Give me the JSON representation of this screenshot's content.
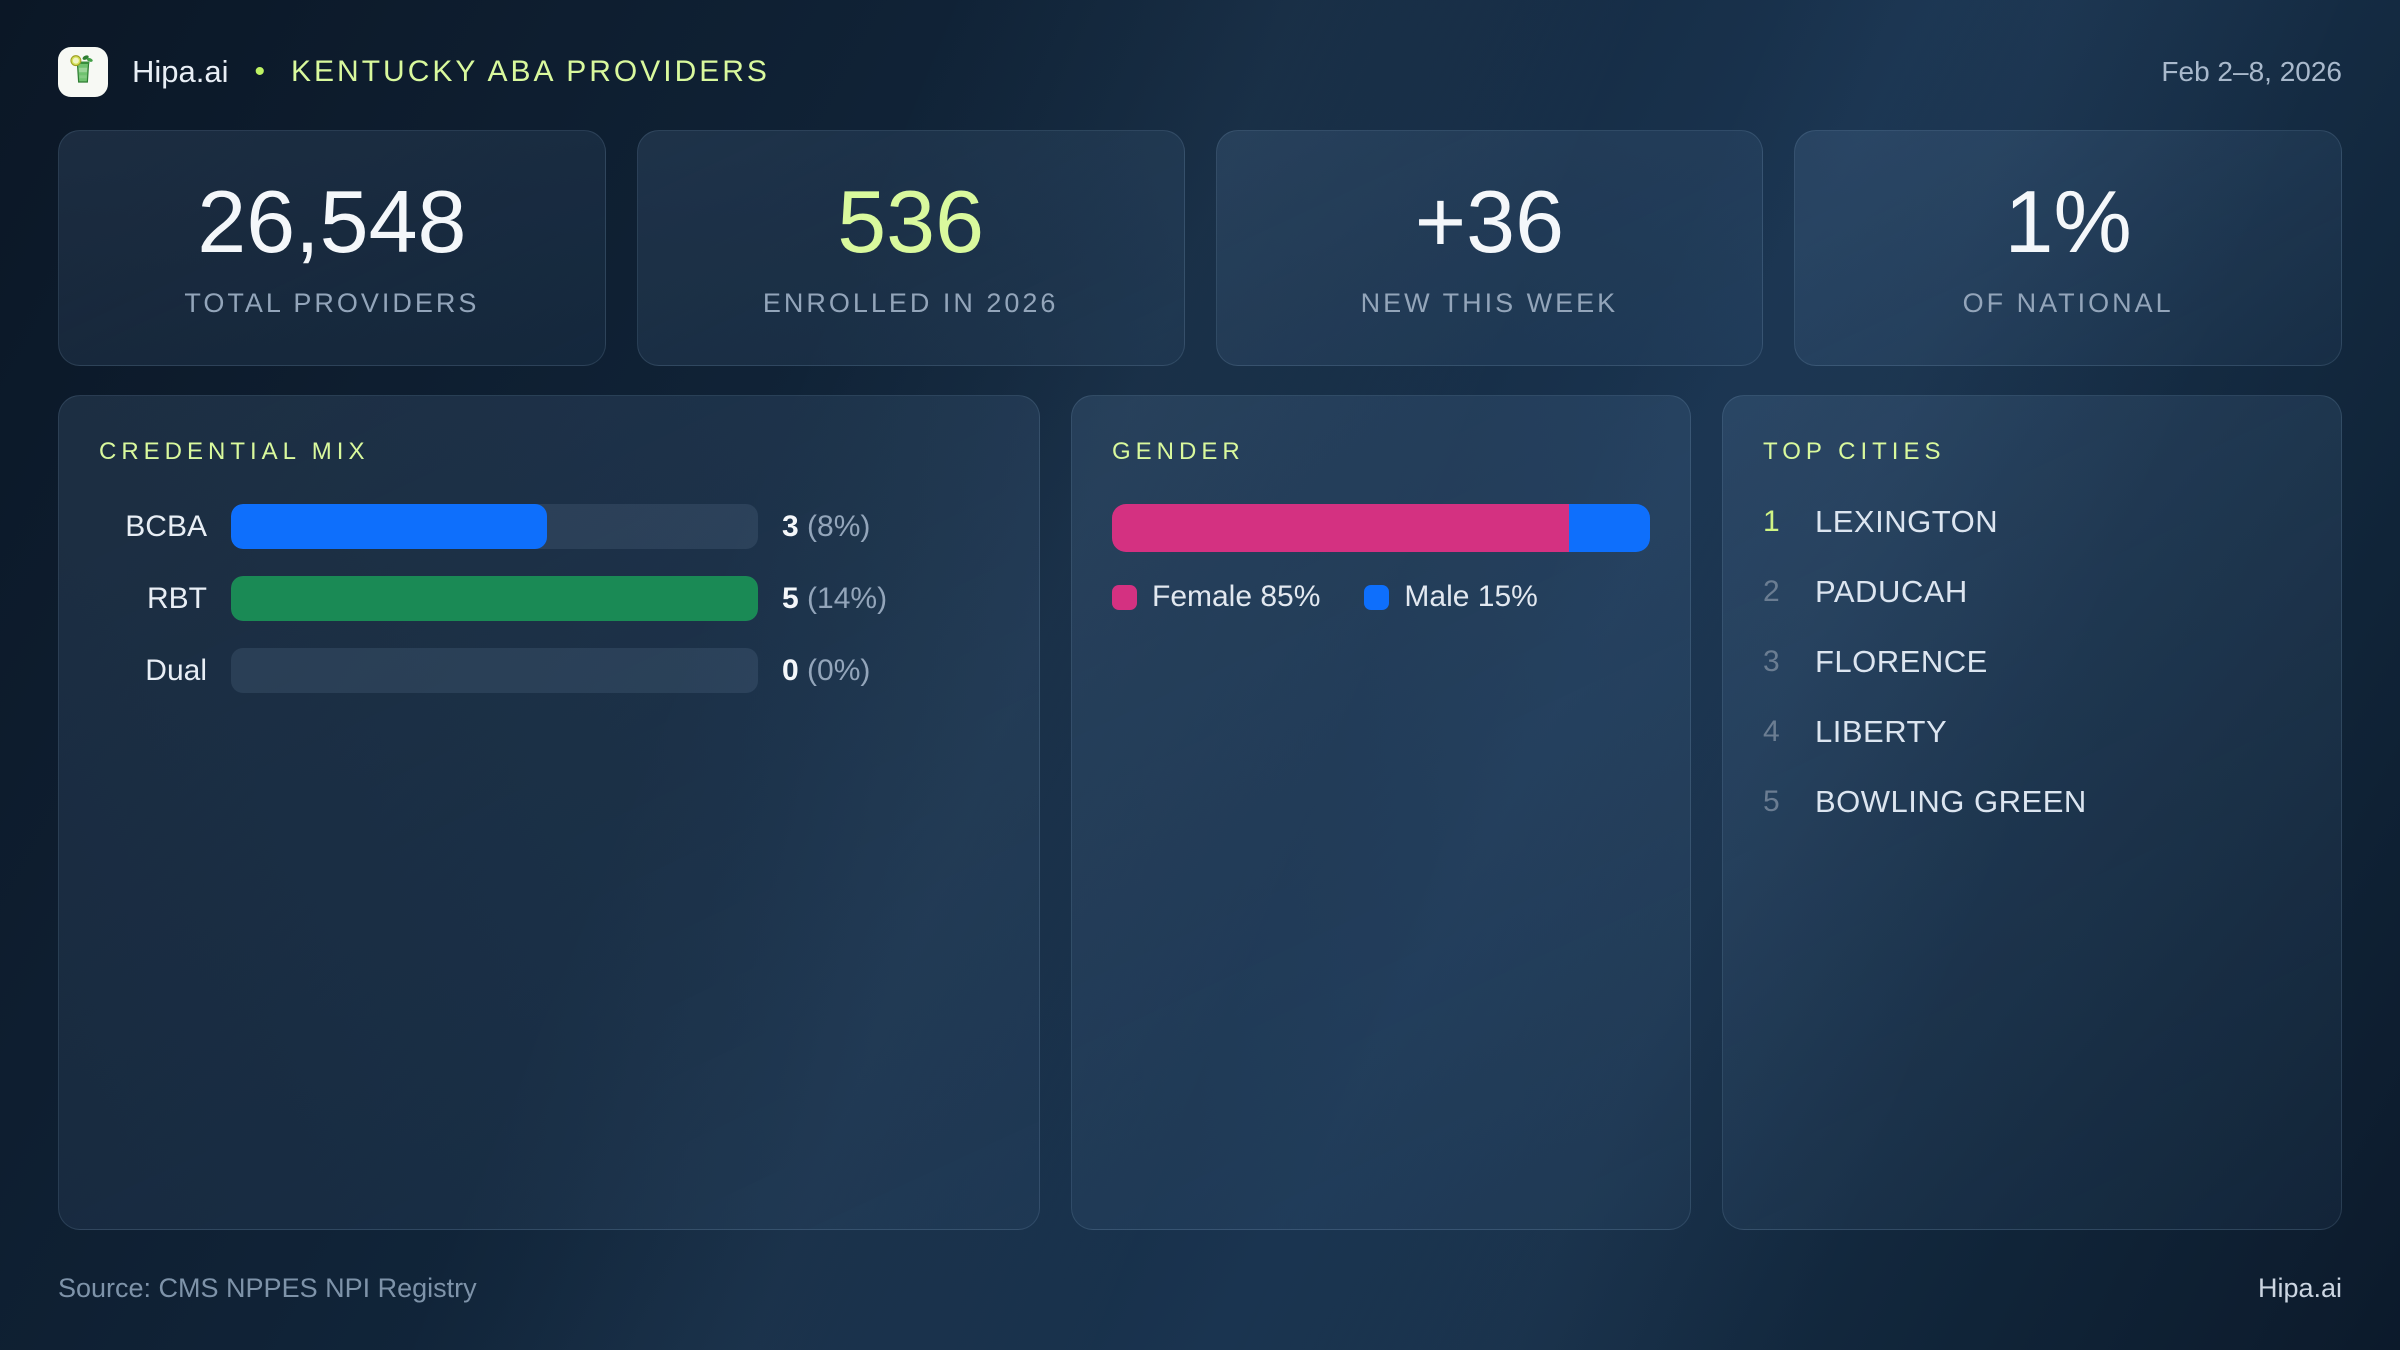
{
  "header": {
    "brand": "Hipa.ai",
    "separator": "•",
    "title": "KENTUCKY ABA PROVIDERS",
    "date_range": "Feb 2–8, 2026",
    "logo_icon": "mojito-drink-icon"
  },
  "stats": [
    {
      "value": "26,548",
      "label": "TOTAL PROVIDERS"
    },
    {
      "value": "536",
      "label": "ENROLLED IN 2026"
    },
    {
      "value": "+36",
      "label": "NEW THIS WEEK"
    },
    {
      "value": "1%",
      "label": "OF NATIONAL"
    }
  ],
  "credential_mix": {
    "title": "CREDENTIAL MIX",
    "rows": [
      {
        "label": "BCBA",
        "count": "3",
        "percent": "(8%)",
        "fill_pct": 60,
        "color": "#0e6ffc"
      },
      {
        "label": "RBT",
        "count": "5",
        "percent": "(14%)",
        "fill_pct": 100,
        "color": "#1a8a55"
      },
      {
        "label": "Dual",
        "count": "0",
        "percent": "(0%)",
        "fill_pct": 0,
        "color": "transparent"
      }
    ]
  },
  "gender": {
    "title": "GENDER",
    "segments": [
      {
        "name": "Female",
        "pct": 85,
        "color": "#d43181"
      },
      {
        "name": "Male",
        "pct": 15,
        "color": "#0e6ffc"
      }
    ],
    "legend": [
      {
        "label": "Female 85%",
        "color": "#d43181"
      },
      {
        "label": "Male 15%",
        "color": "#0e6ffc"
      }
    ]
  },
  "top_cities": {
    "title": "TOP CITIES",
    "items": [
      {
        "rank": "1",
        "name": "LEXINGTON"
      },
      {
        "rank": "2",
        "name": "PADUCAH"
      },
      {
        "rank": "3",
        "name": "FLORENCE"
      },
      {
        "rank": "4",
        "name": "LIBERTY"
      },
      {
        "rank": "5",
        "name": "BOWLING GREEN"
      }
    ]
  },
  "footer": {
    "source": "Source: CMS NPPES NPI Registry",
    "brand": "Hipa.ai"
  },
  "colors": {
    "accent_lime": "#d9f99d",
    "bar_blue": "#0e6ffc",
    "bar_green": "#1a8a55",
    "bar_pink": "#d43181",
    "value_white": "#f4f7fa",
    "label_slate": "#93a5ba"
  },
  "chart_data": [
    {
      "type": "bar",
      "orientation": "horizontal",
      "title": "CREDENTIAL MIX",
      "categories": [
        "BCBA",
        "RBT",
        "Dual"
      ],
      "values": [
        3,
        5,
        0
      ],
      "value_labels": [
        "3 (8%)",
        "5 (14%)",
        "0 (0%)"
      ],
      "xlim": [
        0,
        5
      ],
      "colors": [
        "#0e6ffc",
        "#1a8a55",
        "none"
      ],
      "legend_position": "none",
      "grid": false
    },
    {
      "type": "bar",
      "orientation": "horizontal",
      "stacked": true,
      "title": "GENDER",
      "categories": [
        "Gender"
      ],
      "series": [
        {
          "name": "Female",
          "values": [
            85
          ],
          "color": "#d43181"
        },
        {
          "name": "Male",
          "values": [
            15
          ],
          "color": "#0e6ffc"
        }
      ],
      "unit": "%",
      "xlim": [
        0,
        100
      ],
      "legend_position": "bottom",
      "grid": false
    },
    {
      "type": "table",
      "title": "TOP CITIES",
      "columns": [
        "rank",
        "city"
      ],
      "rows": [
        [
          1,
          "LEXINGTON"
        ],
        [
          2,
          "PADUCAH"
        ],
        [
          3,
          "FLORENCE"
        ],
        [
          4,
          "LIBERTY"
        ],
        [
          5,
          "BOWLING GREEN"
        ]
      ]
    }
  ]
}
